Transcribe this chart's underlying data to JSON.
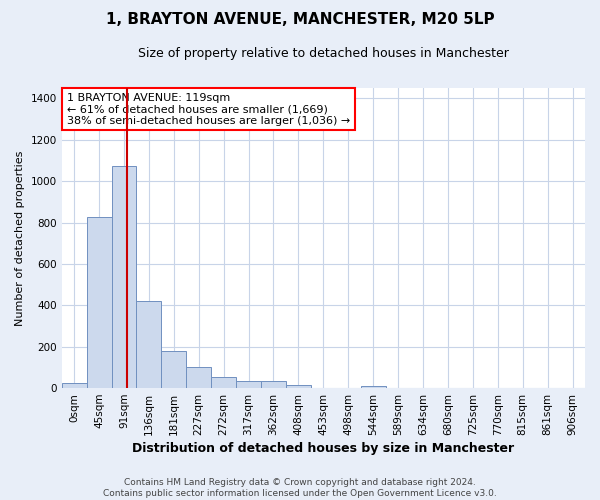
{
  "title": "1, BRAYTON AVENUE, MANCHESTER, M20 5LP",
  "subtitle": "Size of property relative to detached houses in Manchester",
  "xlabel": "Distribution of detached houses by size in Manchester",
  "ylabel": "Number of detached properties",
  "footer_line1": "Contains HM Land Registry data © Crown copyright and database right 2024.",
  "footer_line2": "Contains public sector information licensed under the Open Government Licence v3.0.",
  "annotation_title": "1 BRAYTON AVENUE: 119sqm",
  "annotation_line2": "← 61% of detached houses are smaller (1,669)",
  "annotation_line3": "38% of semi-detached houses are larger (1,036) →",
  "bar_labels": [
    "0sqm",
    "45sqm",
    "91sqm",
    "136sqm",
    "181sqm",
    "227sqm",
    "272sqm",
    "317sqm",
    "362sqm",
    "408sqm",
    "453sqm",
    "498sqm",
    "544sqm",
    "589sqm",
    "634sqm",
    "680sqm",
    "725sqm",
    "770sqm",
    "815sqm",
    "861sqm",
    "906sqm"
  ],
  "bar_values": [
    25,
    825,
    1075,
    420,
    180,
    100,
    55,
    35,
    35,
    15,
    0,
    0,
    10,
    0,
    0,
    0,
    0,
    0,
    0,
    0,
    0
  ],
  "bar_color": "#ccd9ed",
  "bar_edge_color": "#7090c0",
  "vline_color": "#cc0000",
  "ylim": [
    0,
    1450
  ],
  "yticks": [
    0,
    200,
    400,
    600,
    800,
    1000,
    1200,
    1400
  ],
  "grid_color": "#c8d4e8",
  "background_color": "#e8eef8",
  "plot_bg_color": "#ffffff",
  "title_fontsize": 11,
  "subtitle_fontsize": 9,
  "xlabel_fontsize": 9,
  "ylabel_fontsize": 8,
  "tick_fontsize": 7.5,
  "annotation_fontsize": 8,
  "footer_fontsize": 6.5
}
